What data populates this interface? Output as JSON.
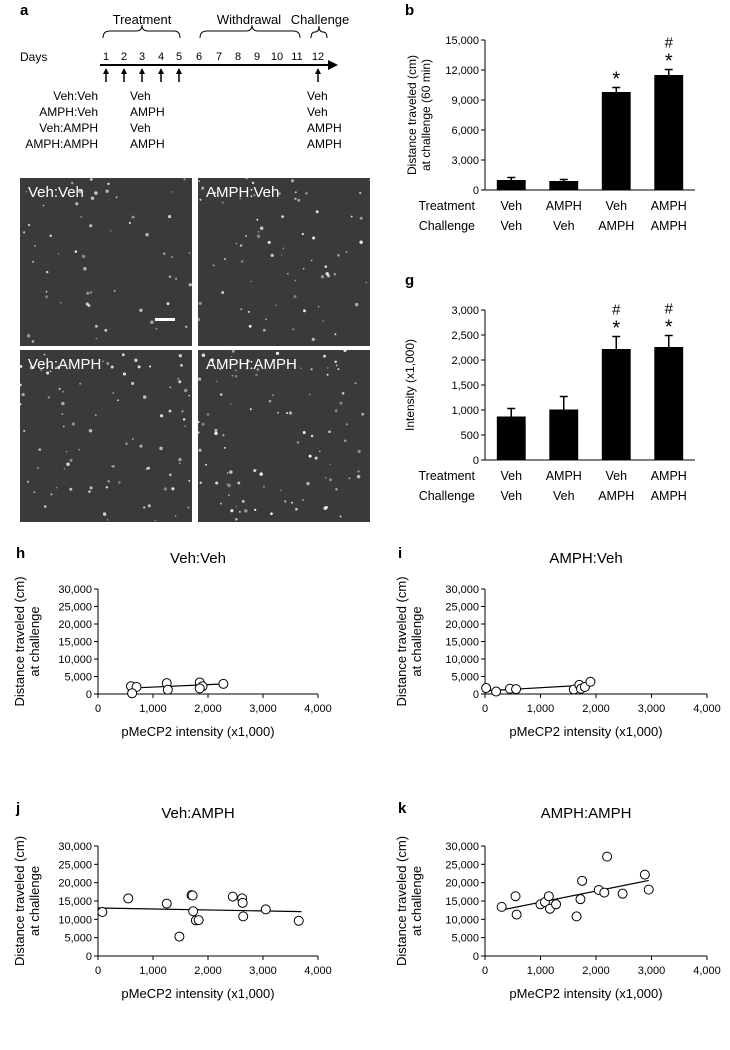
{
  "panels": {
    "a": "a",
    "b": "b",
    "g": "g",
    "h": "h",
    "i": "i",
    "j": "j",
    "k": "k"
  },
  "timeline": {
    "days_label": "Days",
    "days": [
      "1",
      "2",
      "3",
      "4",
      "5",
      "6",
      "7",
      "8",
      "9",
      "10",
      "11",
      "12"
    ],
    "phases": [
      "Treatment",
      "Withdrawal",
      "Challenge"
    ],
    "groups": [
      "Veh:Veh",
      "AMPH:Veh",
      "Veh:AMPH",
      "AMPH:AMPH"
    ],
    "treatment": [
      "Veh",
      "AMPH",
      "Veh",
      "AMPH"
    ],
    "challenge": [
      "Veh",
      "Veh",
      "AMPH",
      "AMPH"
    ]
  },
  "micrographs": [
    "Veh:Veh",
    "AMPH:Veh",
    "Veh:AMPH",
    "AMPH:AMPH"
  ],
  "row_labels": {
    "treatment": "Treatment",
    "challenge": "Challenge"
  },
  "chart_data": [
    {
      "id": "b",
      "type": "bar",
      "ylabel": "Distance traveled (cm) at challenge (60 min)",
      "ylim": [
        0,
        15000
      ],
      "yticks": [
        "0",
        "3,000",
        "6,000",
        "9,000",
        "12,000",
        "15,000"
      ],
      "treatment": [
        "Veh",
        "AMPH",
        "Veh",
        "AMPH"
      ],
      "challenge": [
        "Veh",
        "Veh",
        "AMPH",
        "AMPH"
      ],
      "values": [
        1000,
        900,
        9800,
        11500
      ],
      "errors": [
        250,
        150,
        450,
        550
      ],
      "marks": [
        "",
        "",
        "*",
        "#*"
      ]
    },
    {
      "id": "g",
      "type": "bar",
      "ylabel": "Intensity (x1,000)",
      "ylim": [
        0,
        3000
      ],
      "yticks": [
        "0",
        "500",
        "1,000",
        "1,500",
        "2,000",
        "2,500",
        "3,000"
      ],
      "treatment": [
        "Veh",
        "AMPH",
        "Veh",
        "AMPH"
      ],
      "challenge": [
        "Veh",
        "Veh",
        "AMPH",
        "AMPH"
      ],
      "values": [
        870,
        1010,
        2220,
        2260
      ],
      "errors": [
        160,
        260,
        250,
        230
      ],
      "marks": [
        "",
        "",
        "#*",
        "#*"
      ]
    },
    {
      "id": "h",
      "type": "scatter",
      "title": "Veh:Veh",
      "xlabel": "pMeCP2 intensity (x1,000)",
      "ylabel": "Distance traveled (cm) at challenge",
      "xlim": [
        0,
        4000
      ],
      "ylim": [
        0,
        30000
      ],
      "xticks": [
        "0",
        "1,000",
        "2,000",
        "3,000",
        "4,000"
      ],
      "yticks": [
        "0",
        "5,000",
        "10,000",
        "15,000",
        "20,000",
        "25,000",
        "30,000"
      ],
      "x": [
        600,
        700,
        620,
        1250,
        1270,
        1850,
        1900,
        1850,
        2280
      ],
      "y": [
        2200,
        2000,
        200,
        3100,
        1200,
        3300,
        2200,
        1600,
        2900
      ],
      "fit": [
        [
          600,
          1700
        ],
        [
          2300,
          2900
        ]
      ]
    },
    {
      "id": "i",
      "type": "scatter",
      "title": "AMPH:Veh",
      "xlabel": "pMeCP2 intensity (x1,000)",
      "ylabel": "Distance traveled (cm) at challenge",
      "xlim": [
        0,
        4000
      ],
      "ylim": [
        0,
        30000
      ],
      "xticks": [
        "0",
        "1,000",
        "2,000",
        "3,000",
        "4,000"
      ],
      "yticks": [
        "0",
        "5,000",
        "10,000",
        "15,000",
        "20,000",
        "25,000",
        "30,000"
      ],
      "x": [
        20,
        200,
        450,
        560,
        1600,
        1700,
        1730,
        1800,
        1900
      ],
      "y": [
        1700,
        700,
        1500,
        1400,
        1300,
        2600,
        1500,
        2000,
        3500
      ],
      "fit": [
        [
          0,
          900
        ],
        [
          1900,
          2600
        ]
      ]
    },
    {
      "id": "j",
      "type": "scatter",
      "title": "Veh:AMPH",
      "xlabel": "pMeCP2 intensity (x1,000)",
      "ylabel": "Distance traveled (cm) at challenge",
      "xlim": [
        0,
        4000
      ],
      "ylim": [
        0,
        30000
      ],
      "xticks": [
        "0",
        "1,000",
        "2,000",
        "3,000",
        "4,000"
      ],
      "yticks": [
        "0",
        "5,000",
        "10,000",
        "15,000",
        "20,000",
        "25,000",
        "30,000"
      ],
      "x": [
        80,
        550,
        1250,
        1480,
        1700,
        1720,
        1730,
        1780,
        1830,
        2450,
        2620,
        2630,
        2640,
        3050,
        3650
      ],
      "y": [
        12000,
        15700,
        14300,
        5300,
        16600,
        16500,
        12200,
        9700,
        9800,
        16200,
        15700,
        14500,
        10800,
        12700,
        9600
      ],
      "fit": [
        [
          0,
          13100
        ],
        [
          3700,
          12100
        ]
      ]
    },
    {
      "id": "k",
      "type": "scatter",
      "title": "AMPH:AMPH",
      "xlabel": "pMeCP2 intensity (x1,000)",
      "ylabel": "Distance traveled (cm) at challenge",
      "xlim": [
        0,
        4000
      ],
      "ylim": [
        0,
        30000
      ],
      "xticks": [
        "0",
        "1,000",
        "2,000",
        "3,000",
        "4,000"
      ],
      "yticks": [
        "0",
        "5,000",
        "10,000",
        "15,000",
        "20,000",
        "25,000",
        "30,000"
      ],
      "x": [
        300,
        550,
        570,
        1000,
        1080,
        1150,
        1170,
        1280,
        1650,
        1720,
        1750,
        2050,
        2150,
        2200,
        2480,
        2880,
        2950
      ],
      "y": [
        13400,
        16300,
        11300,
        14100,
        14700,
        16300,
        12900,
        14100,
        10800,
        15500,
        20500,
        18000,
        17300,
        27100,
        17000,
        22200,
        18100
      ],
      "fit": [
        [
          250,
          12400
        ],
        [
          2950,
          20600
        ]
      ]
    }
  ]
}
